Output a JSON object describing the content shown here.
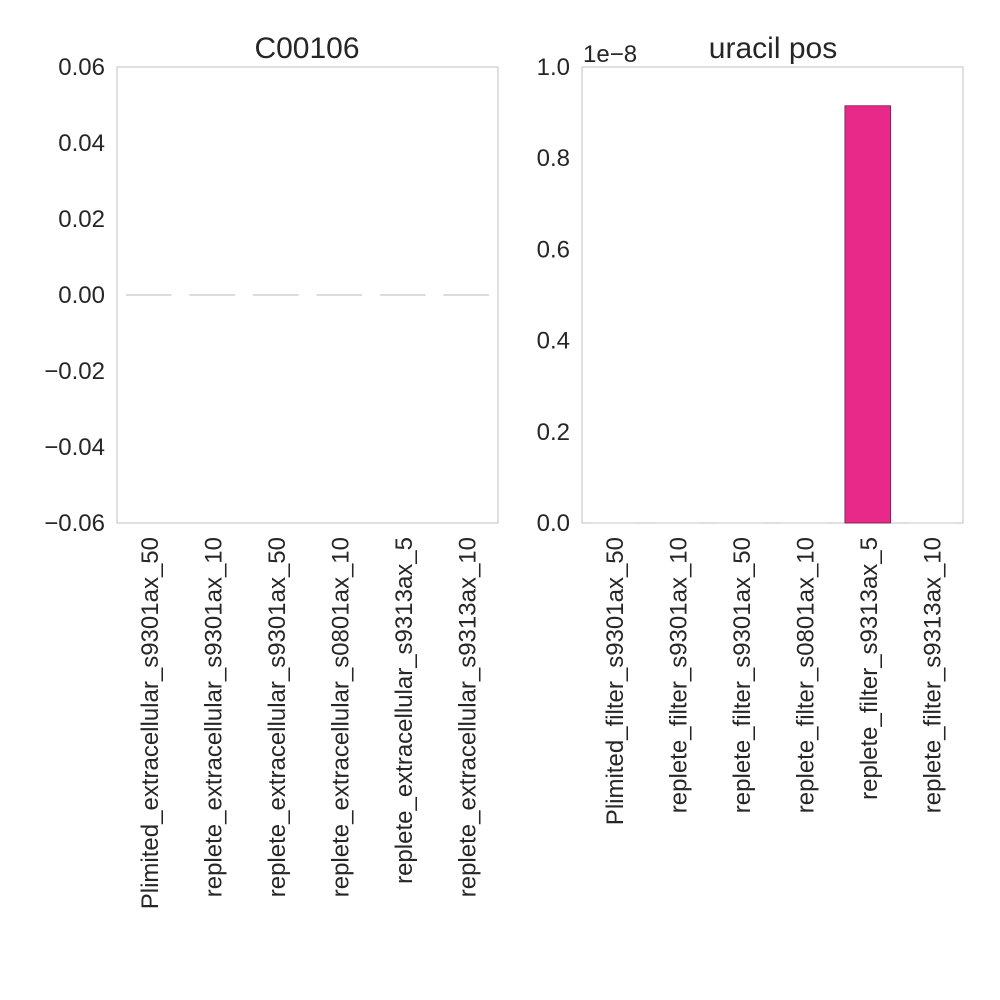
{
  "chart_data": [
    {
      "type": "bar",
      "title": "C00106",
      "categories": [
        "Plimited_extracellular_s9301ax_50",
        "replete_extracellular_s9301ax_10",
        "replete_extracellular_s9301ax_50",
        "replete_extracellular_s0801ax_10",
        "replete_extracellular_s9313ax_5",
        "replete_extracellular_s9313ax_10"
      ],
      "values": [
        0,
        0,
        0,
        0,
        0,
        0
      ],
      "ylim": [
        -0.06,
        0.06
      ],
      "yticks": [
        "0.06",
        "0.04",
        "0.02",
        "0.00",
        "−0.02",
        "−0.04",
        "−0.06"
      ],
      "ytick_values": [
        0.06,
        0.04,
        0.02,
        0.0,
        -0.02,
        -0.04,
        -0.06
      ],
      "xlabel": "",
      "ylabel": "",
      "grid": false,
      "bar_color": "#d0d0d0"
    },
    {
      "type": "bar",
      "title": "uracil pos",
      "categories": [
        "Plimited_filter_s9301ax_50",
        "replete_filter_s9301ax_10",
        "replete_filter_s9301ax_50",
        "replete_filter_s0801ax_10",
        "replete_filter_s9313ax_5",
        "replete_filter_s9313ax_10"
      ],
      "values": [
        0,
        0,
        0,
        0,
        0.915,
        0
      ],
      "scale_label": "1e−8",
      "ylim": [
        0,
        1.0
      ],
      "yticks": [
        "1.0",
        "0.8",
        "0.6",
        "0.4",
        "0.2",
        "0.0"
      ],
      "ytick_values": [
        1.0,
        0.8,
        0.6,
        0.4,
        0.2,
        0.0
      ],
      "xlabel": "",
      "ylabel": "",
      "grid": false,
      "bar_color": "#e8298a"
    }
  ]
}
